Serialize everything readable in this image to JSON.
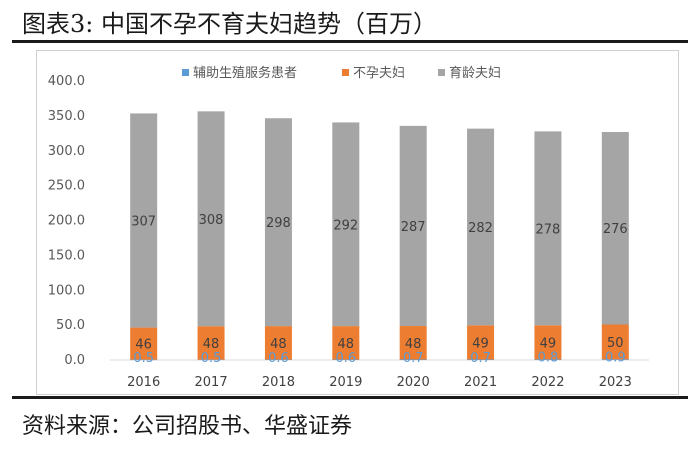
{
  "figure": {
    "title": "图表3:   中国不孕不育夫妇趋势（百万）",
    "source": "资料来源：公司招股书、华盛证券"
  },
  "chart_data": {
    "type": "bar",
    "stacked": true,
    "categories": [
      "2016",
      "2017",
      "2018",
      "2019",
      "2020",
      "2021",
      "2022",
      "2023"
    ],
    "ylim": [
      0,
      400
    ],
    "yticks": [
      "0.0",
      "50.0",
      "100.0",
      "150.0",
      "200.0",
      "250.0",
      "300.0",
      "350.0",
      "400.0"
    ],
    "grid": false,
    "legend_position": "top",
    "series": [
      {
        "name": "辅助生殖服务患者",
        "color": "#5b9bd5",
        "values": [
          0.5,
          0.5,
          0.6,
          0.6,
          0.7,
          0.7,
          0.8,
          0.9
        ],
        "labels": [
          "0.5",
          "0.5",
          "0.6",
          "0.6",
          "0.7",
          "0.7",
          "0.8",
          "0.9"
        ]
      },
      {
        "name": "不孕夫妇",
        "color": "#ed7d31",
        "values": [
          46,
          48,
          48,
          48,
          48,
          49,
          49,
          50
        ],
        "labels": [
          "46",
          "48",
          "48",
          "48",
          "48",
          "49",
          "49",
          "50"
        ]
      },
      {
        "name": "育龄夫妇",
        "color": "#a5a5a5",
        "values": [
          307,
          308,
          298,
          292,
          287,
          282,
          278,
          276
        ],
        "labels": [
          "307",
          "308",
          "298",
          "292",
          "287",
          "282",
          "278",
          "276"
        ]
      }
    ]
  }
}
